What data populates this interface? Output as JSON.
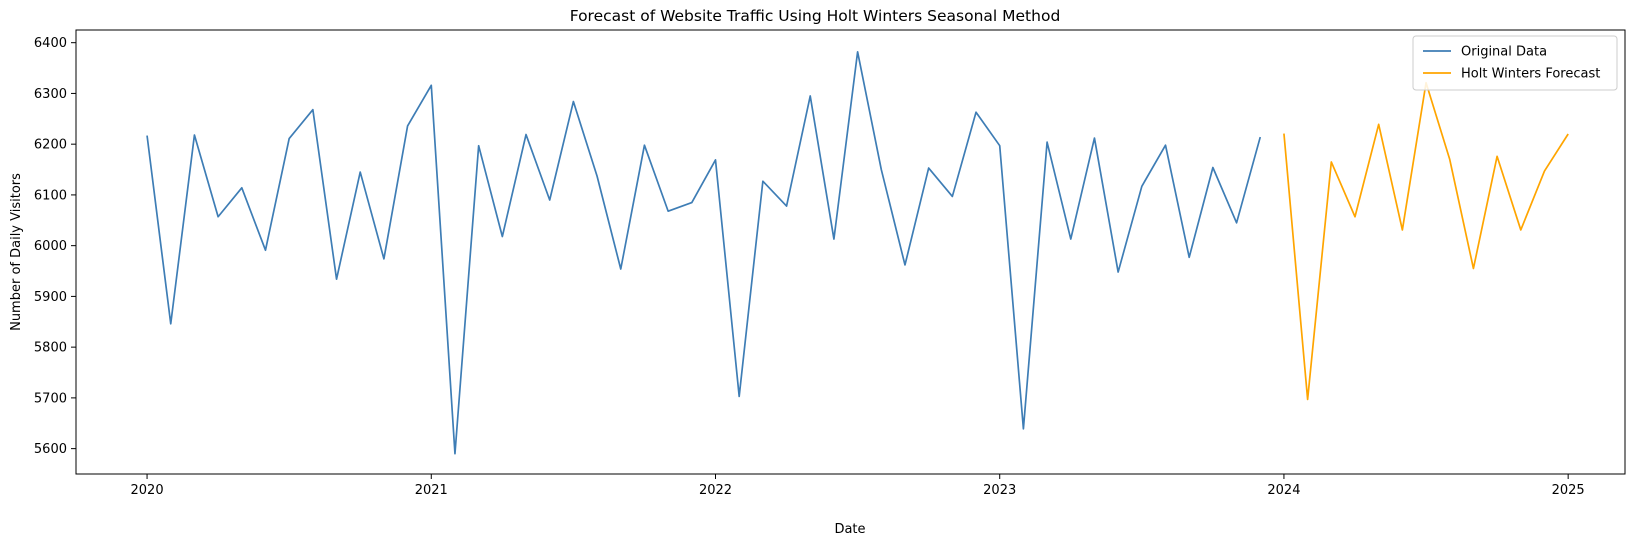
{
  "chart_data": {
    "type": "line",
    "title": "Forecast of Website Traffic Using Holt Winters Seasonal Method",
    "xlabel": "Date",
    "ylabel": "Number of Daily Visitors",
    "xlim": [
      2019.75,
      2025.2
    ],
    "ylim": [
      5550,
      6425
    ],
    "x_ticks": [
      2020,
      2021,
      2022,
      2023,
      2024,
      2025
    ],
    "x_tick_labels": [
      "2020",
      "2021",
      "2022",
      "2023",
      "2024",
      "2025"
    ],
    "y_ticks": [
      5600,
      5700,
      5800,
      5900,
      6000,
      6100,
      6200,
      6300,
      6400
    ],
    "y_tick_labels": [
      "5600",
      "5700",
      "5800",
      "5900",
      "6000",
      "6100",
      "6200",
      "6300",
      "6400"
    ],
    "grid": false,
    "legend_position": "top-right",
    "series": [
      {
        "name": "Original Data",
        "color": "#3e7db5",
        "start": "2020-01",
        "step": "month",
        "values": [
          6217,
          5846,
          6218,
          6057,
          6114,
          5991,
          6211,
          6268,
          5934,
          6145,
          5974,
          6236,
          6316,
          5590,
          6197,
          6018,
          6219,
          6090,
          6284,
          6137,
          5954,
          6198,
          6068,
          6085,
          6169,
          5703,
          6127,
          6078,
          6295,
          6013,
          6382,
          6150,
          5962,
          6153,
          6097,
          6263,
          6197,
          5639,
          6204,
          6013,
          6212,
          5948,
          6117,
          6198,
          5977,
          6154,
          6045,
          6214
        ]
      },
      {
        "name": "Holt Winters Forecast",
        "color": "#ffa500",
        "start": "2024-01",
        "step": "month",
        "values": [
          6221,
          5697,
          6165,
          6057,
          6239,
          6031,
          6321,
          6170,
          5955,
          6176,
          6031,
          6147,
          6220
        ]
      }
    ]
  }
}
